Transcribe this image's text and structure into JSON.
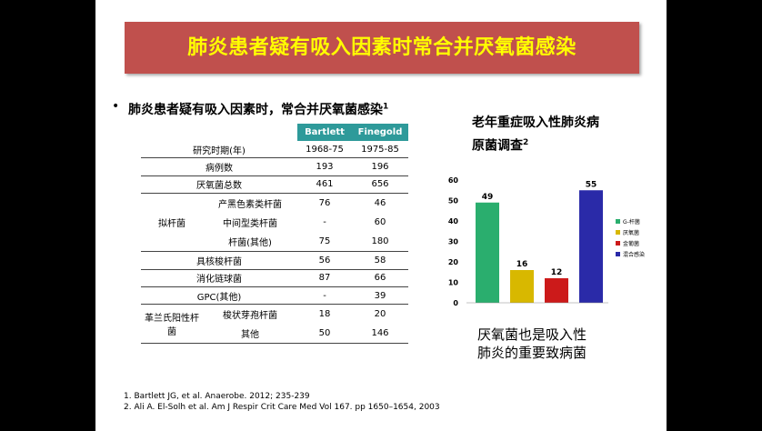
{
  "title": "肺炎患者疑有吸入因素时常合并厌氧菌感染",
  "bullet": {
    "symbol": "•",
    "text": "肺炎患者疑有吸入因素时，常合并厌氧菌感染",
    "sup": "1"
  },
  "table": {
    "col_headers": [
      "Bartlett",
      "Finegold"
    ],
    "rows": {
      "period": {
        "label": "研究时期(年)",
        "v1": "1968-75",
        "v2": "1975-85"
      },
      "cases": {
        "label": "病例数",
        "v1": "193",
        "v2": "196"
      },
      "anaerobes": {
        "label": "厌氧菌总数",
        "v1": "461",
        "v2": "656"
      },
      "bacteroides_group": "拟杆菌",
      "pigmented": {
        "label": "产黑色素类杆菌",
        "v1": "76",
        "v2": "46"
      },
      "intermediate": {
        "label": "中间型类杆菌",
        "v1": "-",
        "v2": "60"
      },
      "bacteroides_other": {
        "label": "杆菌(其他)",
        "v1": "75",
        "v2": "180"
      },
      "fusobacterium": {
        "label": "具核梭杆菌",
        "v1": "56",
        "v2": "58"
      },
      "peptostreptococcus": {
        "label": "消化链球菌",
        "v1": "87",
        "v2": "66"
      },
      "gpc_other": {
        "label": "GPC(其他)",
        "v1": "-",
        "v2": "39"
      },
      "gram_pos_group": "革兰氏阳性杆菌",
      "clostridium": {
        "label": "梭状芽孢杆菌",
        "v1": "18",
        "v2": "20"
      },
      "other": {
        "label": "其他",
        "v1": "50",
        "v2": "146"
      }
    }
  },
  "chart_title": [
    "老年重症吸入性肺炎病",
    "原菌调查"
  ],
  "chart_title_sup": "2",
  "chart_data": {
    "type": "bar",
    "categories": [
      "G-杆菌",
      "厌氧菌",
      "金葡菌",
      "混合感染"
    ],
    "values": [
      49,
      16,
      12,
      55
    ],
    "colors": [
      "#2aae6e",
      "#d8b800",
      "#cc1a1a",
      "#2a2aa8"
    ],
    "ylim": [
      0,
      60
    ],
    "yticks": [
      0,
      10,
      20,
      30,
      40,
      50,
      60
    ],
    "legend": "right"
  },
  "note": [
    "厌氧菌也是吸入性",
    "肺炎的重要致病菌"
  ],
  "refs": [
    "1. Bartlett JG, et al. Anaerobe. 2012; 235-239",
    "2. Ali A. El-Solh et al. Am J Respir Crit Care Med Vol 167. pp 1650–1654, 2003"
  ]
}
